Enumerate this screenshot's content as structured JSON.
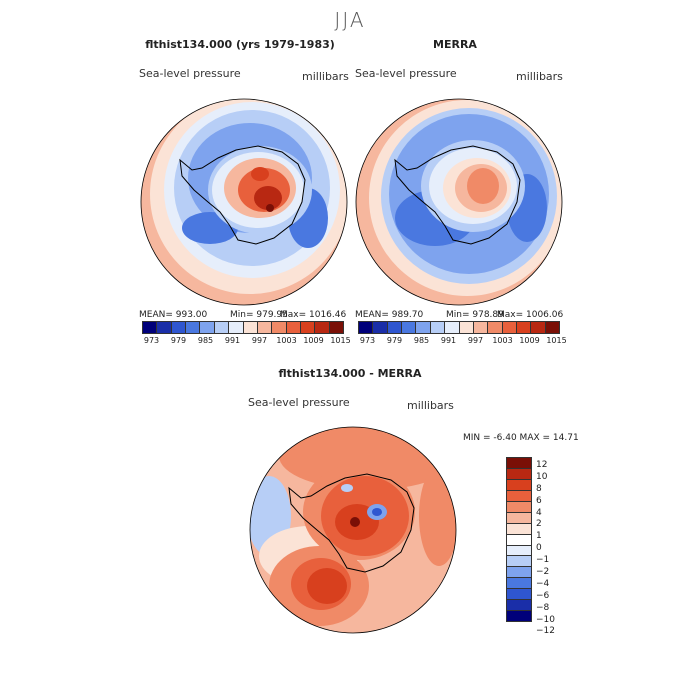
{
  "season": "JJA",
  "panels": [
    {
      "title": "flthist134.000 (yrs 1979-1983)",
      "variable": "Sea-level pressure",
      "units": "millibars",
      "mean": "MEAN= 993.00",
      "min": "Min= 979.95",
      "max": "Max= 1016.46"
    },
    {
      "title": "MERRA",
      "variable": "Sea-level pressure",
      "units": "millibars",
      "mean": "MEAN= 989.70",
      "min": "Min= 978.89",
      "max": "Max= 1006.06"
    }
  ],
  "diff": {
    "title": "flthist134.000 - MERRA",
    "variable": "Sea-level pressure",
    "units": "millibars",
    "minmax": "MIN =   -6.40 MAX =   14.71"
  },
  "colorbar_ticks": [
    "973",
    "979",
    "985",
    "991",
    "997",
    "1003",
    "1009",
    "1015"
  ],
  "diff_ticks": [
    "12",
    "10",
    "8",
    "6",
    "4",
    "2",
    "1",
    "0",
    "−1",
    "−2",
    "−4",
    "−6",
    "−8",
    "−10",
    "−12"
  ],
  "colors": {
    "abs_scale": [
      "#00007a",
      "#1a2ea8",
      "#2f56d0",
      "#4a78e0",
      "#7ea3ee",
      "#b7cef6",
      "#e6eefb",
      "#fbe3d6",
      "#f6b79e",
      "#f08a67",
      "#e8603c",
      "#d8401e",
      "#b82812",
      "#7a0f06"
    ],
    "diff_scale": [
      "#7a0f06",
      "#b82812",
      "#d8401e",
      "#e8603c",
      "#f08a67",
      "#f6b79e",
      "#fbe3d6",
      "#ffffff",
      "#e6eefb",
      "#b7cef6",
      "#7ea3ee",
      "#4a78e0",
      "#2f56d0",
      "#1a2ea8",
      "#00007a"
    ]
  }
}
